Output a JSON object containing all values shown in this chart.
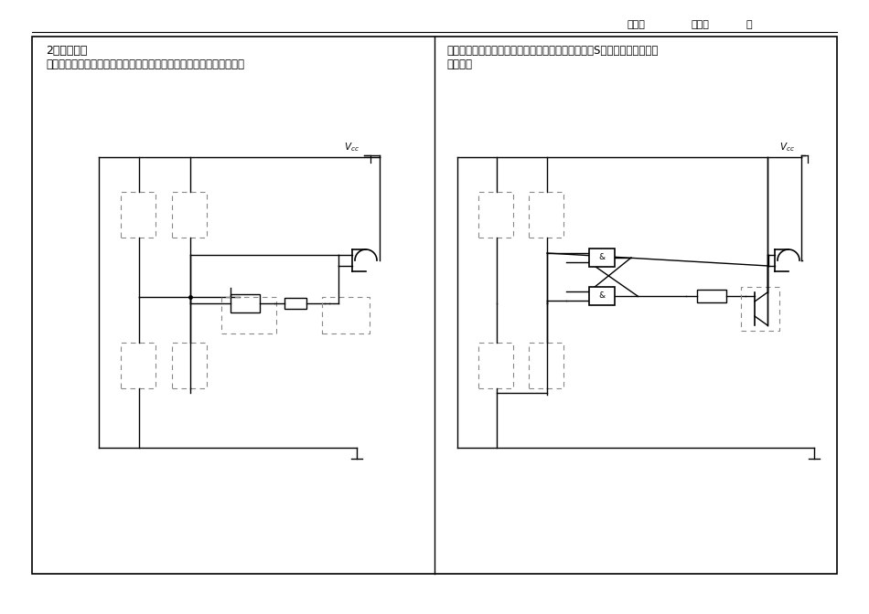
{
  "bg": "#ffffff",
  "text_h1_left": "2．输入优化",
  "text_h2_left": "选择合适的门电路与三极管实现：只在晚上门开报警，完成电路的连接",
  "text_h1_right": "优化目标：门关上后，报警不停，除非按下解除按钮S（先不考虑晚上，还",
  "text_h2_right": "是白天）",
  "class_lbl": "班级：",
  "name_lbl": "名字：",
  "dot_lbl": "．",
  "vcc_lbl": "$V_{cc}$",
  "amp_lbl": "&"
}
